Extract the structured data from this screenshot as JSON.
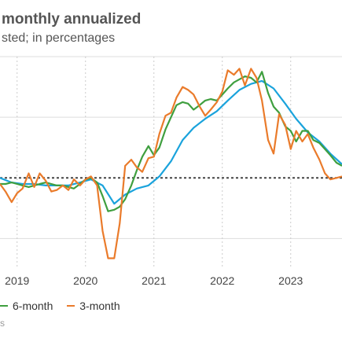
{
  "chart_data": {
    "type": "line",
    "title": "monthly annualized",
    "subtitle": "sted; in percentages",
    "source_fragment": "s",
    "x_tick_labels": [
      "2019",
      "2020",
      "2021",
      "2022",
      "2023"
    ],
    "grid": "vertical dashed at years, horizontal at levels",
    "reference_line": {
      "style": "dotted",
      "y": 2
    },
    "ylim": [
      -4,
      10
    ],
    "xlim": [
      2018.75,
      2023.75
    ],
    "legend_placement": "bottom-left",
    "series": [
      {
        "name": "",
        "color": "#1aa3dc",
        "x": [
          2018.75,
          2018.92,
          2019.08,
          2019.25,
          2019.42,
          2019.58,
          2019.75,
          2019.92,
          2020.08,
          2020.25,
          2020.42,
          2020.58,
          2020.75,
          2020.92,
          2021.08,
          2021.25,
          2021.42,
          2021.58,
          2021.75,
          2021.92,
          2022.08,
          2022.25,
          2022.42,
          2022.58,
          2022.75,
          2022.92,
          2023.08,
          2023.25,
          2023.42,
          2023.58,
          2023.75
        ],
        "y": [
          2.0,
          1.7,
          1.6,
          1.6,
          1.5,
          1.5,
          1.5,
          1.7,
          1.9,
          1.5,
          0.3,
          0.9,
          1.3,
          1.5,
          2.1,
          3.1,
          4.5,
          5.3,
          5.9,
          6.4,
          7.1,
          7.8,
          8.2,
          8.4,
          7.9,
          6.9,
          5.9,
          5.0,
          4.4,
          3.6,
          2.9
        ]
      },
      {
        "name": "6-month",
        "color": "#3f9f3f",
        "x": [
          2018.75,
          2018.83,
          2018.92,
          2019.0,
          2019.08,
          2019.17,
          2019.25,
          2019.33,
          2019.42,
          2019.5,
          2019.58,
          2019.67,
          2019.75,
          2019.83,
          2019.92,
          2020.0,
          2020.08,
          2020.17,
          2020.25,
          2020.33,
          2020.42,
          2020.5,
          2020.58,
          2020.67,
          2020.75,
          2020.83,
          2020.92,
          2021.0,
          2021.08,
          2021.17,
          2021.25,
          2021.33,
          2021.42,
          2021.5,
          2021.58,
          2021.67,
          2021.75,
          2021.83,
          2021.92,
          2022.0,
          2022.08,
          2022.17,
          2022.25,
          2022.33,
          2022.42,
          2022.5,
          2022.58,
          2022.67,
          2022.75,
          2022.83,
          2022.92,
          2023.0,
          2023.08,
          2023.17,
          2023.25,
          2023.33,
          2023.42,
          2023.5,
          2023.58,
          2023.67,
          2023.75
        ],
        "y": [
          1.6,
          1.6,
          1.7,
          1.6,
          1.5,
          1.4,
          1.5,
          1.6,
          1.7,
          1.6,
          1.5,
          1.5,
          1.4,
          1.3,
          1.6,
          1.9,
          2.0,
          1.7,
          0.8,
          -0.2,
          -0.1,
          0.1,
          0.6,
          1.5,
          2.5,
          3.4,
          4.1,
          3.5,
          4.0,
          5.2,
          6.0,
          6.8,
          7.0,
          6.9,
          6.5,
          6.8,
          7.1,
          7.2,
          7.1,
          7.5,
          7.9,
          8.3,
          8.5,
          8.7,
          8.6,
          8.3,
          9.0,
          7.6,
          6.7,
          6.3,
          5.4,
          5.1,
          4.4,
          5.1,
          5.1,
          4.5,
          4.3,
          3.9,
          3.5,
          3.0,
          2.8
        ]
      },
      {
        "name": "3-month",
        "color": "#ea7b2b",
        "x": [
          2018.75,
          2018.83,
          2018.92,
          2019.0,
          2019.08,
          2019.17,
          2019.25,
          2019.33,
          2019.42,
          2019.5,
          2019.58,
          2019.67,
          2019.75,
          2019.83,
          2019.92,
          2020.0,
          2020.08,
          2020.17,
          2020.25,
          2020.33,
          2020.42,
          2020.5,
          2020.58,
          2020.67,
          2020.75,
          2020.83,
          2020.92,
          2021.0,
          2021.08,
          2021.17,
          2021.25,
          2021.33,
          2021.42,
          2021.5,
          2021.58,
          2021.67,
          2021.75,
          2021.83,
          2021.92,
          2022.0,
          2022.08,
          2022.17,
          2022.25,
          2022.33,
          2022.42,
          2022.5,
          2022.58,
          2022.67,
          2022.75,
          2022.83,
          2022.92,
          2023.0,
          2023.08,
          2023.17,
          2023.25,
          2023.33,
          2023.42,
          2023.5,
          2023.58,
          2023.67,
          2023.75
        ],
        "y": [
          1.6,
          1.1,
          0.4,
          1.0,
          1.3,
          2.3,
          1.4,
          2.3,
          1.8,
          1.1,
          1.2,
          1.5,
          1.2,
          1.9,
          1.5,
          1.9,
          2.1,
          1.5,
          -1.5,
          -3.3,
          -3.3,
          -1.0,
          2.8,
          3.2,
          2.7,
          2.4,
          3.3,
          3.4,
          4.9,
          6.1,
          6.3,
          7.3,
          8.0,
          7.8,
          7.5,
          6.7,
          6.1,
          6.5,
          7.0,
          7.7,
          9.1,
          8.8,
          9.2,
          8.1,
          9.2,
          8.6,
          7.1,
          4.5,
          3.6,
          6.2,
          5.5,
          3.9,
          5.1,
          4.4,
          4.9,
          4.0,
          3.2,
          2.3,
          1.9,
          2.0,
          2.1
        ]
      }
    ]
  },
  "legend": {
    "items": [
      {
        "label": "6-month",
        "color": "#3f9f3f"
      },
      {
        "label": "3-month",
        "color": "#ea7b2b"
      }
    ]
  }
}
